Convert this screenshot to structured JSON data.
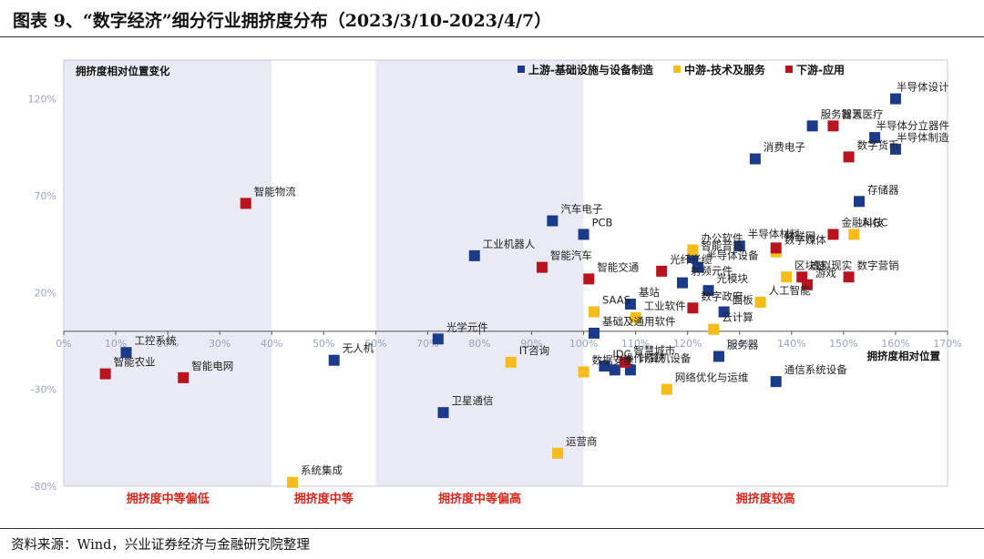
{
  "figure_title": "图表 9、“数字经济”细分行业拥挤度分布（2023/3/10-2023/4/7）",
  "source": "资料来源：Wind，兴业证券经济与金融研究院整理",
  "colors": {
    "upstream": "#1c3a8a",
    "midstream": "#f5bc1c",
    "downstream": "#b8141f",
    "zone_band": "#eaeaf4",
    "zone_text": "#d9271e"
  },
  "chart_data": {
    "type": "scatter",
    "x_axis_title": "拥挤度相对位置",
    "y_axis_title": "拥挤度相对位置变化",
    "xlim": [
      0,
      170
    ],
    "ylim": [
      -80,
      140
    ],
    "x_ticks": [
      0,
      10,
      20,
      30,
      40,
      50,
      60,
      70,
      80,
      90,
      100,
      110,
      120,
      130,
      140,
      150,
      160,
      170
    ],
    "x_tick_labels": [
      "0%",
      "10%",
      "20%",
      "30%",
      "40%",
      "50%",
      "60%",
      "70%",
      "80%",
      "90%",
      "100%",
      "110%",
      "120%",
      "130%",
      "140%",
      "150%",
      "160%",
      "170%"
    ],
    "y_ticks": [
      120,
      70,
      20,
      -30,
      -80
    ],
    "y_tick_labels": [
      "120%",
      "70%",
      "20%",
      "-30%",
      "-80%"
    ],
    "legend_position": "top-right",
    "legend": [
      {
        "key": "up",
        "label": "上游-基础设施与设备制造",
        "color": "#1c3a8a"
      },
      {
        "key": "mid",
        "label": "中游-技术及服务",
        "color": "#f5bc1c"
      },
      {
        "key": "down",
        "label": "下游-应用",
        "color": "#b8141f"
      }
    ],
    "zones": [
      {
        "label": "拥挤度中等偏低",
        "x_range": [
          0,
          40
        ],
        "shaded": true
      },
      {
        "label": "拥挤度中等",
        "x_range": [
          40,
          60
        ],
        "shaded": false
      },
      {
        "label": "拥挤度中等偏高",
        "x_range": [
          60,
          100
        ],
        "shaded": true
      },
      {
        "label": "拥挤度较高",
        "x_range": [
          100,
          170
        ],
        "shaded": false
      }
    ],
    "series": [
      {
        "key": "up",
        "name": "上游-基础设施与设备制造",
        "points": [
          {
            "label": "半导体设计",
            "x": 160,
            "y": 120
          },
          {
            "label": "服务器人",
            "x": 144,
            "y": 106
          },
          {
            "label": "半导体分立器件",
            "x": 156,
            "y": 100
          },
          {
            "label": "半导体制造",
            "x": 160,
            "y": 94
          },
          {
            "label": "消费电子",
            "x": 133,
            "y": 89
          },
          {
            "label": "存储器",
            "x": 153,
            "y": 67
          },
          {
            "label": "汽车电子",
            "x": 94,
            "y": 57
          },
          {
            "label": "PCB",
            "x": 100,
            "y": 50
          },
          {
            "label": "工业机器人",
            "x": 79,
            "y": 39
          },
          {
            "label": "半导体材料",
            "x": 130,
            "y": 44
          },
          {
            "label": "智能音箱",
            "x": 121,
            "y": 38
          },
          {
            "label": "半导体设备",
            "x": 122,
            "y": 33
          },
          {
            "label": "射频元件",
            "x": 119,
            "y": 25
          },
          {
            "label": "光模块",
            "x": 124,
            "y": 21
          },
          {
            "label": "基站",
            "x": 109,
            "y": 14
          },
          {
            "label": "面板",
            "x": 127,
            "y": 10
          },
          {
            "label": "工控系统",
            "x": 12,
            "y": -11
          },
          {
            "label": "无人机",
            "x": 52,
            "y": -15
          },
          {
            "label": "光学元件",
            "x": 72,
            "y": -4
          },
          {
            "label": "基础及通用软件",
            "x": 102,
            "y": -1
          },
          {
            "label": "服务器",
            "x": 126,
            "y": -13
          },
          {
            "label": "IDC",
            "x": 104,
            "y": -18
          },
          {
            "label": "操作系统",
            "x": 106,
            "y": -20
          },
          {
            "label": "计算机设备",
            "x": 109,
            "y": -20
          },
          {
            "label": "通信系统设备",
            "x": 137,
            "y": -26
          },
          {
            "label": "卫星通信",
            "x": 73,
            "y": -42
          }
        ]
      },
      {
        "key": "mid",
        "name": "中游-技术及服务",
        "points": [
          {
            "label": "AIGC",
            "x": 152,
            "y": 50
          },
          {
            "label": "数字媒体",
            "x": 137,
            "y": 41
          },
          {
            "label": "办公软件",
            "x": 121,
            "y": 42
          },
          {
            "label": "区块链",
            "x": 139,
            "y": 28
          },
          {
            "label": "人工智能",
            "x": 134,
            "y": 15
          },
          {
            "label": "SAAS",
            "x": 102,
            "y": 10
          },
          {
            "label": "工业软件",
            "x": 110,
            "y": 7
          },
          {
            "label": "云计算",
            "x": 125,
            "y": 1
          },
          {
            "label": "IT咨询",
            "x": 86,
            "y": -16
          },
          {
            "label": "数据安全",
            "x": 100,
            "y": -21
          },
          {
            "label": "网络优化与运维",
            "x": 116,
            "y": -30
          },
          {
            "label": "运营商",
            "x": 95,
            "y": -63
          },
          {
            "label": "系统集成",
            "x": 44,
            "y": -78
          }
        ]
      },
      {
        "key": "down",
        "name": "下游-应用",
        "points": [
          {
            "label": "智慧医疗",
            "x": 148,
            "y": 106
          },
          {
            "label": "数字货币",
            "x": 151,
            "y": 90
          },
          {
            "label": "智能物流",
            "x": 35,
            "y": 66
          },
          {
            "label": "金融科技",
            "x": 148,
            "y": 50
          },
          {
            "label": "物联网",
            "x": 137,
            "y": 43
          },
          {
            "label": "智能汽车",
            "x": 92,
            "y": 33
          },
          {
            "label": "光纤光缆",
            "x": 115,
            "y": 31
          },
          {
            "label": "智能交通",
            "x": 101,
            "y": 27
          },
          {
            "label": "虚拟现实",
            "x": 142,
            "y": 28
          },
          {
            "label": "数字营销",
            "x": 151,
            "y": 28
          },
          {
            "label": "游戏",
            "x": 143,
            "y": 24
          },
          {
            "label": "数字政府",
            "x": 121,
            "y": 12
          },
          {
            "label": "智能电网",
            "x": 23,
            "y": -24
          },
          {
            "label": "智能农业",
            "x": 8,
            "y": -22
          },
          {
            "label": "智慧城市",
            "x": 108,
            "y": -16
          }
        ]
      }
    ]
  }
}
